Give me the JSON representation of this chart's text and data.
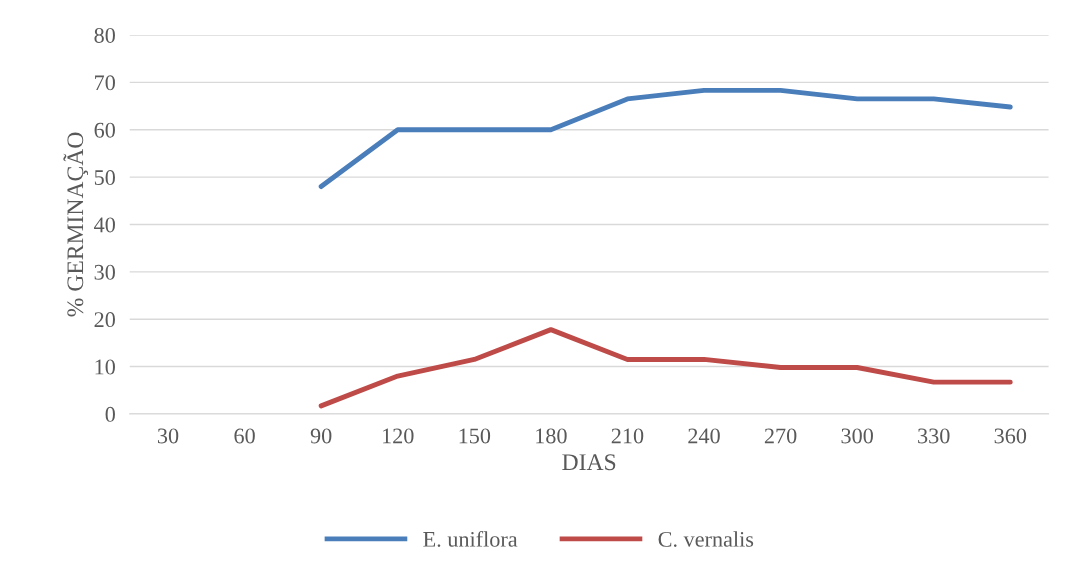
{
  "chart_data": {
    "type": "line",
    "xlabel": "DIAS",
    "ylabel": "% GERMINAÇÃO",
    "categories": [
      "30",
      "60",
      "90",
      "120",
      "150",
      "180",
      "210",
      "240",
      "270",
      "300",
      "330",
      "360"
    ],
    "series": [
      {
        "name": "E. uniflora",
        "color": "#4a7ebb",
        "values": [
          null,
          null,
          48,
          60,
          60,
          60,
          66.5,
          68.3,
          68.3,
          66.5,
          66.5,
          64.8
        ]
      },
      {
        "name": "C. vernalis",
        "color": "#be4b48",
        "values": [
          null,
          null,
          1.7,
          8,
          11.5,
          17.8,
          11.5,
          11.5,
          9.8,
          9.8,
          6.7,
          6.7
        ]
      }
    ],
    "ylim": [
      0,
      80
    ],
    "yticks": [
      0,
      10,
      20,
      30,
      40,
      50,
      60,
      70,
      80
    ],
    "grid": "y",
    "legend": "bottom",
    "marker": "none",
    "line_style": "solid"
  }
}
